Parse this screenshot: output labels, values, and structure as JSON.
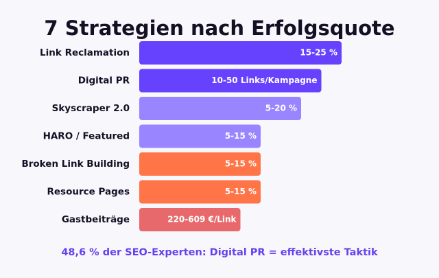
{
  "chart_data": {
    "type": "hbar",
    "title": "7 Strategien nach Erfolgsquote",
    "categories": [
      "Link Reclamation",
      "Digital PR",
      "Skyscraper 2.0",
      "HARO / Featured",
      "Broken Link Building",
      "Resource Pages",
      "Gastbeiträge"
    ],
    "values": [
      10,
      9,
      8,
      6,
      6,
      6,
      5
    ],
    "value_labels": [
      "15-25 %",
      "10-50 Links/Kampagne",
      "5-20 %",
      "5-15 %",
      "5-15 %",
      "5-15 %",
      "220-609 €/Link"
    ],
    "colors": [
      "#6642ff",
      "#6642ff",
      "#9985ff",
      "#9985ff",
      "#ff7547",
      "#ff7547",
      "#e8696b"
    ],
    "xlim": [
      0,
      10
    ],
    "annotation": "48,6 % der SEO-Experten: Digital PR = effektivste Taktik"
  }
}
